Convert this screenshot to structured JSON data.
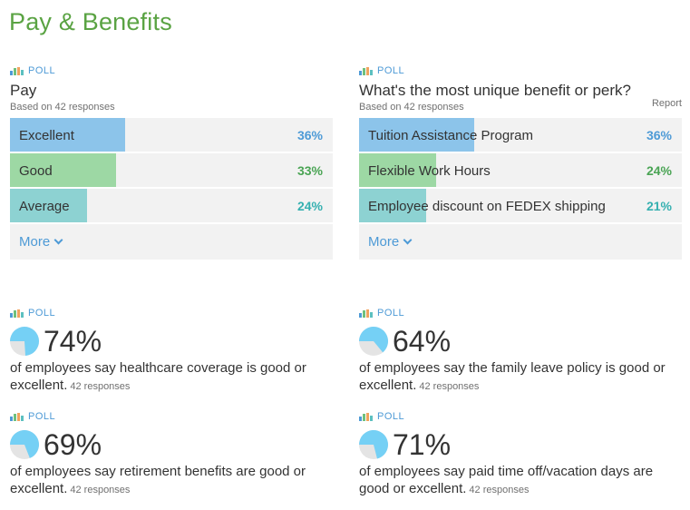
{
  "page": {
    "title": "Pay & Benefits"
  },
  "colors": {
    "title_green": "#5aa343",
    "blue": "#4d9ad6",
    "bar_blue": "#8cc4ea",
    "bar_green": "#9dd8a4",
    "bar_teal": "#8dd2d2",
    "pct_blue": "#4d9ad6",
    "pct_green": "#4aa454",
    "pct_teal": "#35b0b0",
    "pie_fill": "#75d0f5",
    "pie_rest": "#e4e4e4"
  },
  "poll_pay": {
    "tag": "POLL",
    "title": "Pay",
    "subtitle": "Based on 42 responses",
    "more_label": "More",
    "options": [
      {
        "label": "Excellent",
        "pct": "36%",
        "value": 36
      },
      {
        "label": "Good",
        "pct": "33%",
        "value": 33
      },
      {
        "label": "Average",
        "pct": "24%",
        "value": 24
      }
    ]
  },
  "poll_perk": {
    "tag": "POLL",
    "title": "What's the most unique benefit or perk?",
    "subtitle": "Based on 42 responses",
    "report_label": "Report",
    "more_label": "More",
    "options": [
      {
        "label": "Tuition Assistance Program",
        "pct": "36%",
        "value": 36
      },
      {
        "label": "Flexible Work Hours",
        "pct": "24%",
        "value": 24
      },
      {
        "label": "Employee discount on FEDEX shipping",
        "pct": "21%",
        "value": 21
      }
    ]
  },
  "stats": [
    {
      "tag": "POLL",
      "pct": "74%",
      "value": 74,
      "desc": "of employees say healthcare coverage is good or excellent.",
      "responses": "42 responses"
    },
    {
      "tag": "POLL",
      "pct": "64%",
      "value": 64,
      "desc": "of employees say the family leave policy is good or excellent.",
      "responses": "42 responses"
    },
    {
      "tag": "POLL",
      "pct": "69%",
      "value": 69,
      "desc": "of employees say retirement benefits are good or excellent.",
      "responses": "42 responses"
    },
    {
      "tag": "POLL",
      "pct": "71%",
      "value": 71,
      "desc": "of employees say paid time off/vacation days are good or excellent.",
      "responses": "42 responses"
    }
  ],
  "icons": {
    "poll": "bar-chart-icon",
    "more": "chevron-down-icon",
    "stat": "pie-chart-icon"
  }
}
